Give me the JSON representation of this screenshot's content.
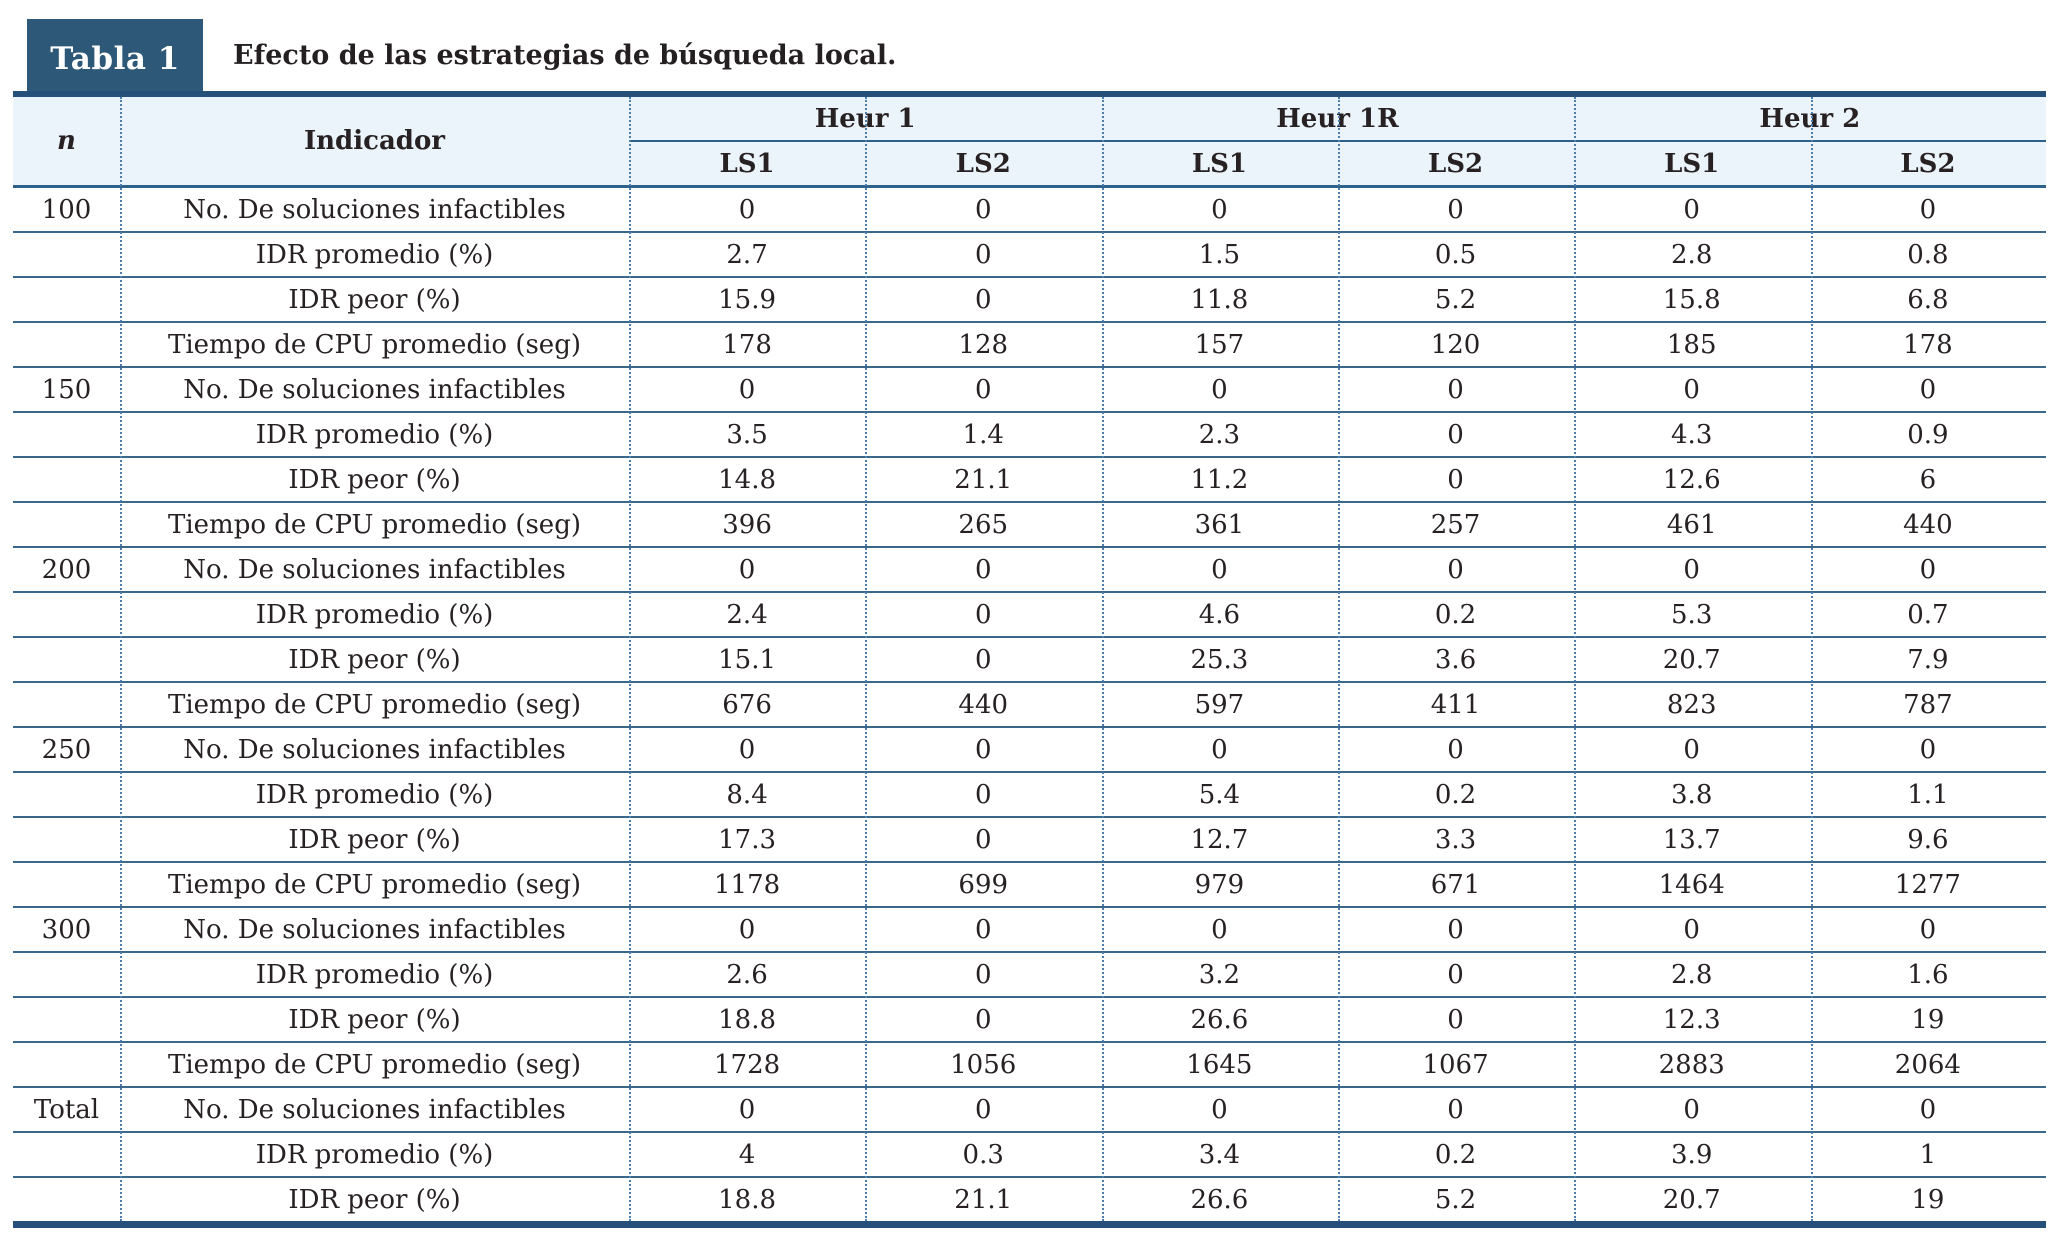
{
  "table_label": "Tabla 1",
  "caption": "Efecto de las estrategias de búsqueda local.",
  "colors": {
    "navy_box": "#2d5878",
    "thick_rule": "#24507a",
    "header_rule": "#2e6189",
    "row_rule": "#3a688c",
    "dotted_rule": "#4d7dad",
    "header_bg": "#ebf3fb",
    "text": "#272123"
  },
  "header": {
    "n_label": "n",
    "indicator_label": "Indicador",
    "group_labels": [
      "Heur 1",
      "Heur 1R",
      "Heur 2"
    ],
    "subcols": [
      "LS1",
      "LS2",
      "LS1",
      "LS2",
      "LS1",
      "LS2"
    ]
  },
  "rows": [
    {
      "n": "100",
      "indicator": "No. De soluciones infactibles",
      "values": [
        "0",
        "0",
        "0",
        "0",
        "0",
        "0"
      ]
    },
    {
      "n": "",
      "indicator": "IDR promedio (%)",
      "values": [
        "2.7",
        "0",
        "1.5",
        "0.5",
        "2.8",
        "0.8"
      ]
    },
    {
      "n": "",
      "indicator": "IDR peor (%)",
      "values": [
        "15.9",
        "0",
        "11.8",
        "5.2",
        "15.8",
        "6.8"
      ]
    },
    {
      "n": "",
      "indicator": "Tiempo de CPU promedio (seg)",
      "values": [
        "178",
        "128",
        "157",
        "120",
        "185",
        "178"
      ]
    },
    {
      "n": "150",
      "indicator": "No. De soluciones infactibles",
      "values": [
        "0",
        "0",
        "0",
        "0",
        "0",
        "0"
      ]
    },
    {
      "n": "",
      "indicator": "IDR promedio (%)",
      "values": [
        "3.5",
        "1.4",
        "2.3",
        "0",
        "4.3",
        "0.9"
      ]
    },
    {
      "n": "",
      "indicator": "IDR peor (%)",
      "values": [
        "14.8",
        "21.1",
        "11.2",
        "0",
        "12.6",
        "6"
      ]
    },
    {
      "n": "",
      "indicator": "Tiempo de CPU promedio (seg)",
      "values": [
        "396",
        "265",
        "361",
        "257",
        "461",
        "440"
      ]
    },
    {
      "n": "200",
      "indicator": "No. De soluciones infactibles",
      "values": [
        "0",
        "0",
        "0",
        "0",
        "0",
        "0"
      ]
    },
    {
      "n": "",
      "indicator": "IDR promedio (%)",
      "values": [
        "2.4",
        "0",
        "4.6",
        "0.2",
        "5.3",
        "0.7"
      ]
    },
    {
      "n": "",
      "indicator": "IDR peor (%)",
      "values": [
        "15.1",
        "0",
        "25.3",
        "3.6",
        "20.7",
        "7.9"
      ]
    },
    {
      "n": "",
      "indicator": "Tiempo de CPU promedio (seg)",
      "values": [
        "676",
        "440",
        "597",
        "411",
        "823",
        "787"
      ]
    },
    {
      "n": "250",
      "indicator": "No. De soluciones infactibles",
      "values": [
        "0",
        "0",
        "0",
        "0",
        "0",
        "0"
      ]
    },
    {
      "n": "",
      "indicator": "IDR promedio (%)",
      "values": [
        "8.4",
        "0",
        "5.4",
        "0.2",
        "3.8",
        "1.1"
      ]
    },
    {
      "n": "",
      "indicator": "IDR peor (%)",
      "values": [
        "17.3",
        "0",
        "12.7",
        "3.3",
        "13.7",
        "9.6"
      ]
    },
    {
      "n": "",
      "indicator": "Tiempo de CPU promedio (seg)",
      "values": [
        "1178",
        "699",
        "979",
        "671",
        "1464",
        "1277"
      ]
    },
    {
      "n": "300",
      "indicator": "No. De soluciones infactibles",
      "values": [
        "0",
        "0",
        "0",
        "0",
        "0",
        "0"
      ]
    },
    {
      "n": "",
      "indicator": "IDR promedio (%)",
      "values": [
        "2.6",
        "0",
        "3.2",
        "0",
        "2.8",
        "1.6"
      ]
    },
    {
      "n": "",
      "indicator": "IDR peor (%)",
      "values": [
        "18.8",
        "0",
        "26.6",
        "0",
        "12.3",
        "19"
      ]
    },
    {
      "n": "",
      "indicator": "Tiempo de CPU promedio (seg)",
      "values": [
        "1728",
        "1056",
        "1645",
        "1067",
        "2883",
        "2064"
      ]
    },
    {
      "n": "Total",
      "indicator": "No. De soluciones infactibles",
      "values": [
        "0",
        "0",
        "0",
        "0",
        "0",
        "0"
      ]
    },
    {
      "n": "",
      "indicator": "IDR promedio (%)",
      "values": [
        "4",
        "0.3",
        "3.4",
        "0.2",
        "3.9",
        "1"
      ]
    },
    {
      "n": "",
      "indicator": "IDR peor (%)",
      "values": [
        "18.8",
        "21.1",
        "26.6",
        "5.2",
        "20.7",
        "19"
      ]
    }
  ]
}
